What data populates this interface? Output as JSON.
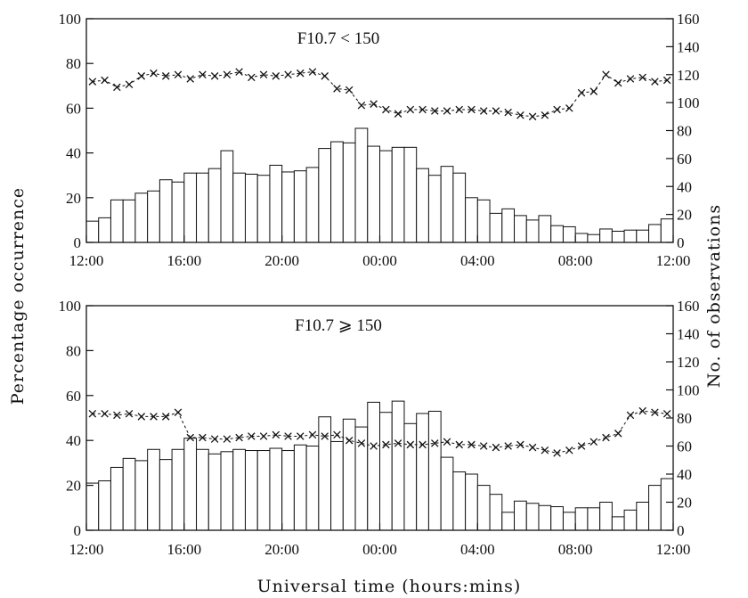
{
  "chart_data": [
    {
      "type": "bar",
      "title": "F10.7 < 150",
      "xticks": [
        "12:00",
        "16:00",
        "20:00",
        "00:00",
        "04:00",
        "08:00",
        "12:00"
      ],
      "ylim": [
        0,
        100
      ],
      "yticks": [
        0,
        20,
        40,
        60,
        80,
        100
      ],
      "y2lim": [
        0,
        160
      ],
      "y2ticks": [
        0,
        20,
        40,
        60,
        80,
        100,
        120,
        140,
        160
      ],
      "series": [
        {
          "axis": "left",
          "kind": "bar",
          "values": [
            9.5,
            11,
            19,
            19,
            22,
            23,
            28,
            27,
            31,
            31,
            33,
            41,
            31,
            30.5,
            30,
            34.5,
            31.5,
            32,
            33.5,
            42,
            45,
            44.5,
            51,
            43,
            41,
            42.5,
            42.5,
            33,
            30,
            34,
            31,
            20,
            19,
            13,
            15,
            12,
            10,
            12,
            7.5,
            7,
            4,
            3.5,
            6,
            5,
            5.5,
            5.5,
            8,
            10.5
          ]
        },
        {
          "axis": "right",
          "kind": "line",
          "values": [
            115,
            116,
            111,
            113,
            119,
            121,
            119,
            120,
            117,
            120,
            119,
            120,
            122,
            118,
            120,
            119,
            120,
            121,
            122,
            119,
            110,
            109,
            98,
            99,
            95,
            92,
            95,
            95,
            94,
            94,
            95,
            95,
            94,
            94,
            93,
            91,
            90,
            91,
            95,
            96,
            107,
            108,
            120,
            114,
            117,
            118,
            115,
            116
          ]
        }
      ]
    },
    {
      "type": "bar",
      "title": "F10.7 ⩾ 150",
      "xticks": [
        "12:00",
        "16:00",
        "20:00",
        "00:00",
        "04:00",
        "08:00",
        "12:00"
      ],
      "ylim": [
        0,
        100
      ],
      "yticks": [
        0,
        20,
        40,
        60,
        80,
        100
      ],
      "y2lim": [
        0,
        160
      ],
      "y2ticks": [
        0,
        20,
        40,
        60,
        80,
        100,
        120,
        140,
        160
      ],
      "series": [
        {
          "axis": "left",
          "kind": "bar",
          "values": [
            21,
            22,
            28,
            32,
            31,
            36,
            31.5,
            36,
            41,
            36,
            34,
            35,
            36,
            35.5,
            35.5,
            36.5,
            35.5,
            38,
            37.5,
            50.5,
            39.5,
            49.5,
            46,
            57,
            52.5,
            57.5,
            47.5,
            52,
            53,
            32.5,
            26,
            25,
            20,
            16,
            8,
            13,
            12,
            11,
            10.5,
            8,
            10,
            10,
            12.5,
            6,
            9,
            12.5,
            20,
            23
          ]
        },
        {
          "axis": "right",
          "kind": "line",
          "values": [
            83,
            83,
            82,
            83,
            81,
            81,
            81,
            84,
            66,
            66,
            65,
            65,
            66,
            67,
            67,
            68,
            67,
            67,
            68,
            67,
            68,
            64,
            62,
            60,
            61,
            62,
            61,
            61,
            62,
            63,
            61,
            61,
            60,
            59,
            60,
            61,
            59,
            57,
            55,
            57,
            60,
            63,
            66,
            69,
            82,
            85,
            84,
            83
          ]
        }
      ]
    }
  ],
  "axes": {
    "ylabel_left": "Percentage occurrence",
    "ylabel_right": "No. of observations",
    "xlabel": "Universal time (hours:mins)"
  }
}
